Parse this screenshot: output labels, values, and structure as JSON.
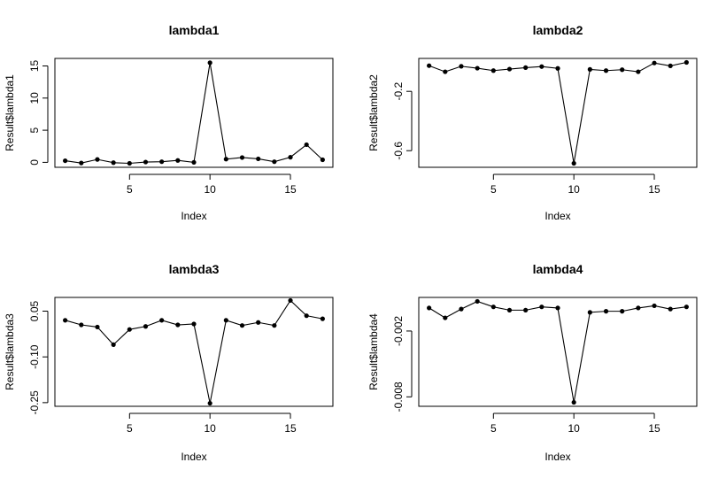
{
  "chart_data": [
    {
      "type": "line",
      "title": "lambda1",
      "xlabel": "Index",
      "ylabel": "Result$lambda1",
      "x": [
        1,
        2,
        3,
        4,
        5,
        6,
        7,
        8,
        9,
        10,
        11,
        12,
        13,
        14,
        15,
        16,
        17
      ],
      "series": [
        {
          "values": [
            0.25,
            -0.1,
            0.45,
            -0.05,
            -0.15,
            0.05,
            0.1,
            0.3,
            0.0,
            15.5,
            0.5,
            0.75,
            0.55,
            0.1,
            0.8,
            2.75,
            0.4
          ]
        }
      ],
      "xlim": [
        0.36,
        17.64
      ],
      "ylim": [
        -0.77,
        16.17
      ],
      "xticks": [
        5,
        10,
        15
      ],
      "yticks": [
        0,
        5,
        10,
        15
      ],
      "yticklabels": [
        "0",
        "5",
        "10",
        "15"
      ]
    },
    {
      "type": "line",
      "title": "lambda2",
      "xlabel": "Index",
      "ylabel": "Result$lambda2",
      "x": [
        1,
        2,
        3,
        4,
        5,
        6,
        7,
        8,
        9,
        10,
        11,
        12,
        13,
        14,
        15,
        16,
        17
      ],
      "series": [
        {
          "values": [
            -0.027,
            -0.068,
            -0.031,
            -0.044,
            -0.06,
            -0.05,
            -0.04,
            -0.033,
            -0.045,
            -0.685,
            -0.052,
            -0.06,
            -0.054,
            -0.068,
            -0.009,
            -0.028,
            -0.005
          ]
        }
      ],
      "xlim": [
        0.36,
        17.64
      ],
      "ylim": [
        -0.712,
        0.022
      ],
      "xticks": [
        5,
        10,
        15
      ],
      "yticks": [
        -0.6,
        -0.2
      ],
      "yticklabels": [
        "-0.6",
        "-0.2"
      ]
    },
    {
      "type": "line",
      "title": "lambda3",
      "xlabel": "Index",
      "ylabel": "Result$lambda3",
      "x": [
        1,
        2,
        3,
        4,
        5,
        6,
        7,
        8,
        9,
        10,
        11,
        12,
        13,
        14,
        15,
        16,
        17
      ],
      "series": [
        {
          "values": [
            0.02,
            0.005,
            -0.002,
            -0.06,
            -0.01,
            0.0,
            0.02,
            0.005,
            0.008,
            -0.252,
            0.02,
            0.003,
            0.013,
            0.003,
            0.085,
            0.035,
            0.025
          ]
        }
      ],
      "xlim": [
        0.36,
        17.64
      ],
      "ylim": [
        -0.262,
        0.095
      ],
      "xticks": [
        5,
        10,
        15
      ],
      "yticks": [
        -0.25,
        -0.1,
        0.05
      ],
      "yticklabels": [
        "-0.25",
        "-0.10",
        "0.05"
      ]
    },
    {
      "type": "line",
      "title": "lambda4",
      "xlabel": "Index",
      "ylabel": "Result$lambda4",
      "x": [
        1,
        2,
        3,
        4,
        5,
        6,
        7,
        8,
        9,
        10,
        11,
        12,
        13,
        14,
        15,
        16,
        17
      ],
      "series": [
        {
          "values": [
            0.0001,
            -0.0008,
            0.0,
            0.0007,
            0.0002,
            -0.0001,
            -0.0001,
            0.0002,
            0.0001,
            -0.0085,
            -0.0003,
            -0.0002,
            -0.0002,
            0.0001,
            0.0003,
            0.0,
            0.0002
          ]
        }
      ],
      "xlim": [
        0.36,
        17.64
      ],
      "ylim": [
        -0.00886,
        0.00106
      ],
      "xticks": [
        5,
        10,
        15
      ],
      "yticks": [
        -0.008,
        -0.002
      ],
      "yticklabels": [
        "-0.008",
        "-0.002"
      ]
    }
  ]
}
